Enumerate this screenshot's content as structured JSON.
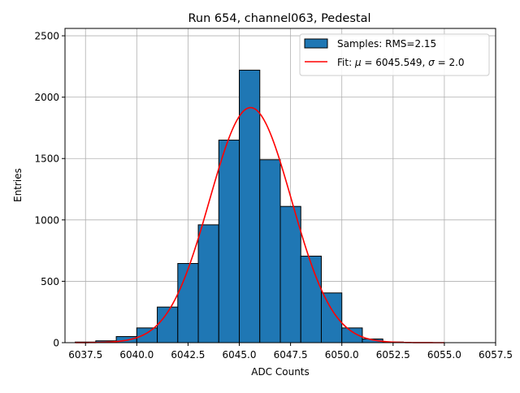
{
  "chart_data": {
    "type": "bar",
    "title": "Run 654, channel063, Pedestal",
    "xlabel": "ADC Counts",
    "ylabel": "Entries",
    "xlim": [
      6036.5,
      6057.5
    ],
    "ylim": [
      0,
      2560
    ],
    "xticks": [
      6037.5,
      6040.0,
      6042.5,
      6045.0,
      6047.5,
      6050.0,
      6052.5,
      6055.0,
      6057.5
    ],
    "xtick_labels": [
      "6037.5",
      "6040.0",
      "6042.5",
      "6045.0",
      "6047.5",
      "6050.0",
      "6052.5",
      "6055.0",
      "6057.5"
    ],
    "yticks": [
      0,
      500,
      1000,
      1500,
      2000,
      2500
    ],
    "ytick_labels": [
      "0",
      "500",
      "1000",
      "1500",
      "2000",
      "2500"
    ],
    "grid": true,
    "legend_position": "top-right",
    "histogram": {
      "name": "Samples: RMS=2.15",
      "color": "#1f77b4",
      "edge_color": "#000000",
      "bin_edges": [
        6037,
        6038,
        6039,
        6040,
        6041,
        6042,
        6043,
        6044,
        6045,
        6046,
        6047,
        6048,
        6049,
        6050,
        6051,
        6052,
        6053,
        6054,
        6055,
        6056,
        6057
      ],
      "values": [
        5,
        15,
        50,
        120,
        290,
        645,
        960,
        1650,
        2220,
        1490,
        1110,
        705,
        405,
        120,
        30,
        5,
        0,
        0,
        0,
        0
      ]
    },
    "fit": {
      "name": "Fit: μ = 6045.549, σ = 2.0",
      "name_parts": [
        "Fit: ",
        "μ",
        " = 6045.549, ",
        "σ",
        " = 2.0"
      ],
      "color": "#ff0000",
      "mu": 6045.549,
      "sigma": 2.0,
      "amplitude": 1915,
      "x_range": [
        6037,
        6055
      ]
    }
  }
}
